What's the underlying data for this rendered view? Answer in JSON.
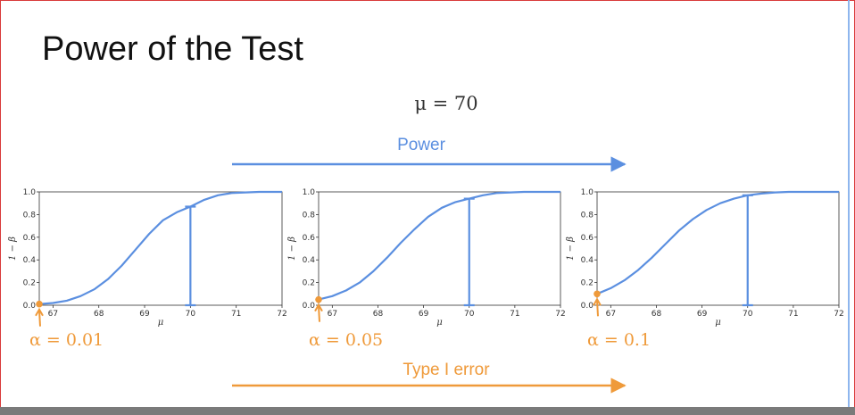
{
  "slide": {
    "title": "Power of the Test",
    "mu_label": "μ = 70",
    "power_label": "Power",
    "type_one_label": "Type I error"
  },
  "colors": {
    "curve": "#5b8fe0",
    "accent_orange": "#ef9a3a",
    "axis": "#333333"
  },
  "chart_data": [
    {
      "type": "line",
      "xlabel": "μ",
      "ylabel": "1 − β",
      "xlim": [
        66.7,
        72
      ],
      "ylim": [
        0,
        1
      ],
      "xticks": [
        67,
        68,
        69,
        70,
        71,
        72
      ],
      "yticks": [
        0.0,
        0.2,
        0.4,
        0.6,
        0.8,
        1.0
      ],
      "ytick_labels": [
        "0.0",
        "0.2",
        "0.4",
        "0.6",
        "0.8",
        "1.0"
      ],
      "x": [
        66.7,
        67.0,
        67.3,
        67.6,
        67.9,
        68.2,
        68.5,
        68.8,
        69.1,
        69.4,
        69.7,
        70.0,
        70.3,
        70.6,
        70.9,
        71.2,
        71.5,
        72.0
      ],
      "y": [
        0.01,
        0.02,
        0.04,
        0.08,
        0.14,
        0.23,
        0.35,
        0.49,
        0.63,
        0.75,
        0.82,
        0.87,
        0.93,
        0.97,
        0.99,
        0.995,
        1.0,
        1.0
      ],
      "power_marker": {
        "x": 70,
        "y_low": 0.0,
        "y_high": 0.87
      },
      "alpha_point": {
        "x": 66.7,
        "y": 0.01
      },
      "alpha_label": "α = 0.01"
    },
    {
      "type": "line",
      "xlabel": "μ",
      "ylabel": "1 − β",
      "xlim": [
        66.7,
        72
      ],
      "ylim": [
        0,
        1
      ],
      "xticks": [
        67,
        68,
        69,
        70,
        71,
        72
      ],
      "yticks": [
        0.0,
        0.2,
        0.4,
        0.6,
        0.8,
        1.0
      ],
      "ytick_labels": [
        "0.0",
        "0.2",
        "0.4",
        "0.6",
        "0.8",
        "1.0"
      ],
      "x": [
        66.7,
        67.0,
        67.3,
        67.6,
        67.9,
        68.2,
        68.5,
        68.8,
        69.1,
        69.4,
        69.7,
        70.0,
        70.3,
        70.6,
        70.9,
        71.2,
        71.5,
        72.0
      ],
      "y": [
        0.05,
        0.08,
        0.13,
        0.2,
        0.3,
        0.42,
        0.55,
        0.67,
        0.78,
        0.86,
        0.91,
        0.94,
        0.97,
        0.99,
        0.995,
        1.0,
        1.0,
        1.0
      ],
      "power_marker": {
        "x": 70,
        "y_low": 0.0,
        "y_high": 0.94
      },
      "alpha_point": {
        "x": 66.7,
        "y": 0.05
      },
      "alpha_label": "α = 0.05"
    },
    {
      "type": "line",
      "xlabel": "μ",
      "ylabel": "1 − β",
      "xlim": [
        66.7,
        72
      ],
      "ylim": [
        0,
        1
      ],
      "xticks": [
        67,
        68,
        69,
        70,
        71,
        72
      ],
      "yticks": [
        0.0,
        0.2,
        0.4,
        0.6,
        0.8,
        1.0
      ],
      "ytick_labels": [
        "0.0",
        "0.2",
        "0.4",
        "0.6",
        "0.8",
        "1.0"
      ],
      "x": [
        66.7,
        67.0,
        67.3,
        67.6,
        67.9,
        68.2,
        68.5,
        68.8,
        69.1,
        69.4,
        69.7,
        70.0,
        70.3,
        70.6,
        70.9,
        71.2,
        71.5,
        72.0
      ],
      "y": [
        0.1,
        0.15,
        0.22,
        0.31,
        0.42,
        0.54,
        0.66,
        0.76,
        0.84,
        0.9,
        0.94,
        0.97,
        0.985,
        0.995,
        1.0,
        1.0,
        1.0,
        1.0
      ],
      "power_marker": {
        "x": 70,
        "y_low": 0.0,
        "y_high": 0.97
      },
      "alpha_point": {
        "x": 66.7,
        "y": 0.1
      },
      "alpha_label": "α = 0.1"
    }
  ]
}
